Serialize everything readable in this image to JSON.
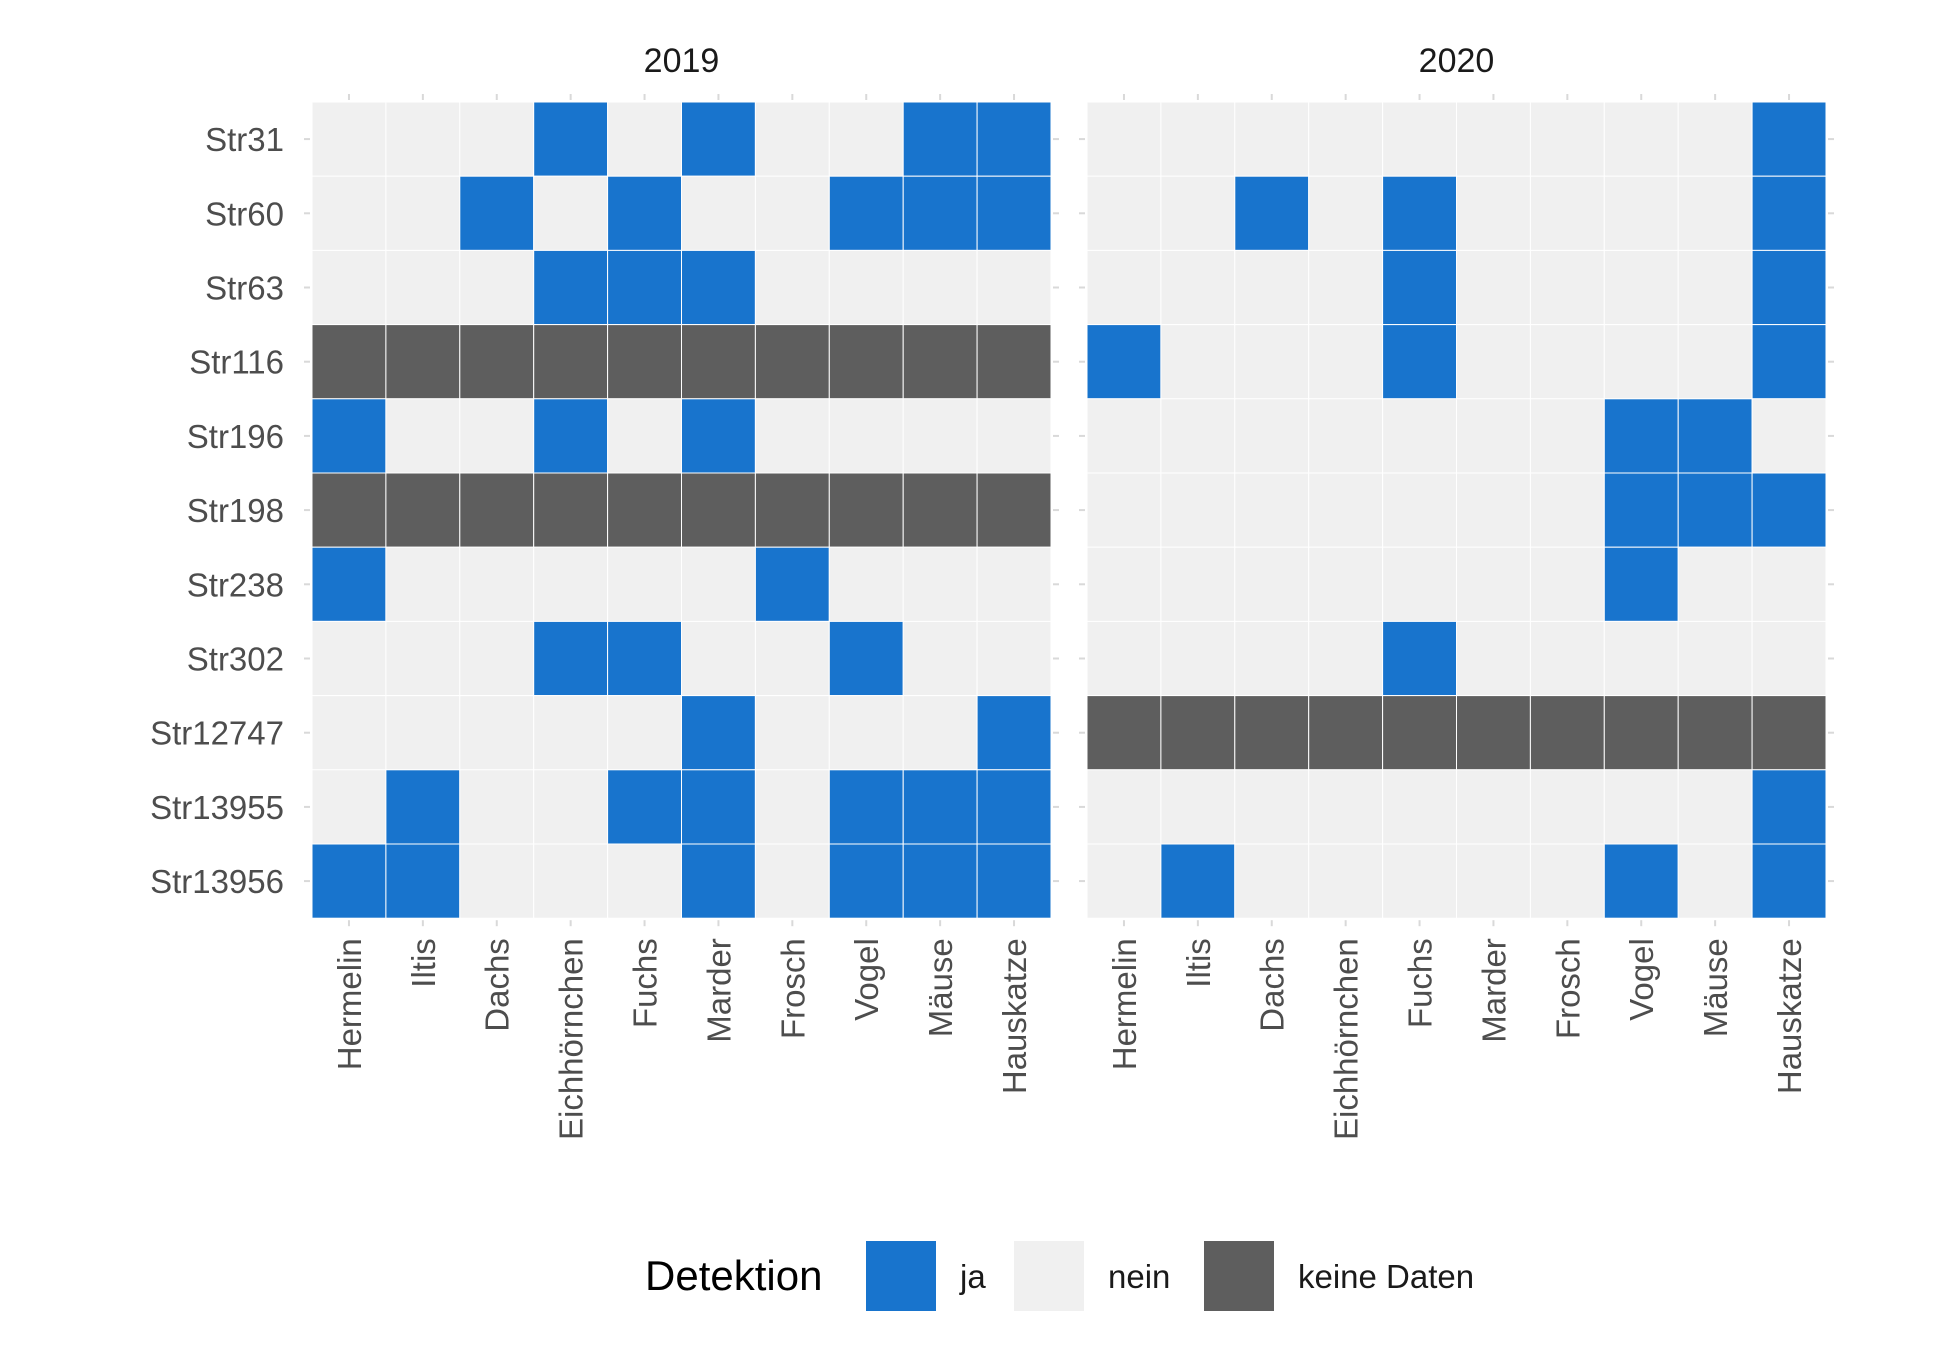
{
  "chart_data": {
    "type": "heatmap",
    "facets": [
      {
        "title": "2019",
        "matrix": [
          [
            1,
            1,
            1,
            0,
            1,
            0,
            1,
            1,
            0,
            0
          ],
          [
            1,
            1,
            0,
            1,
            0,
            1,
            1,
            0,
            0,
            0
          ],
          [
            1,
            1,
            1,
            0,
            0,
            0,
            1,
            1,
            1,
            1
          ],
          [
            2,
            2,
            2,
            2,
            2,
            2,
            2,
            2,
            2,
            2
          ],
          [
            0,
            1,
            1,
            0,
            1,
            0,
            1,
            1,
            1,
            1
          ],
          [
            2,
            2,
            2,
            2,
            2,
            2,
            2,
            2,
            2,
            2
          ],
          [
            0,
            1,
            1,
            1,
            1,
            1,
            0,
            1,
            1,
            1
          ],
          [
            1,
            1,
            1,
            0,
            0,
            1,
            1,
            0,
            1,
            1
          ],
          [
            1,
            1,
            1,
            1,
            1,
            0,
            1,
            1,
            1,
            0
          ],
          [
            1,
            0,
            1,
            1,
            0,
            0,
            1,
            0,
            0,
            0
          ],
          [
            0,
            0,
            1,
            1,
            1,
            0,
            1,
            0,
            0,
            0
          ]
        ]
      },
      {
        "title": "2020",
        "matrix": [
          [
            1,
            1,
            1,
            1,
            1,
            1,
            1,
            1,
            1,
            0
          ],
          [
            1,
            1,
            0,
            1,
            0,
            1,
            1,
            1,
            1,
            0
          ],
          [
            1,
            1,
            1,
            1,
            0,
            1,
            1,
            1,
            1,
            0
          ],
          [
            0,
            1,
            1,
            1,
            0,
            1,
            1,
            1,
            1,
            0
          ],
          [
            1,
            1,
            1,
            1,
            1,
            1,
            1,
            0,
            0,
            1
          ],
          [
            1,
            1,
            1,
            1,
            1,
            1,
            1,
            0,
            0,
            0
          ],
          [
            1,
            1,
            1,
            1,
            1,
            1,
            1,
            0,
            1,
            1
          ],
          [
            1,
            1,
            1,
            1,
            0,
            1,
            1,
            1,
            1,
            1
          ],
          [
            2,
            2,
            2,
            2,
            2,
            2,
            2,
            2,
            2,
            2
          ],
          [
            1,
            1,
            1,
            1,
            1,
            1,
            1,
            1,
            1,
            0
          ],
          [
            1,
            0,
            1,
            1,
            1,
            1,
            1,
            0,
            1,
            0
          ]
        ]
      }
    ],
    "rows": [
      "Str31",
      "Str60",
      "Str63",
      "Str116",
      "Str196",
      "Str198",
      "Str238",
      "Str302",
      "Str12747",
      "Str13955",
      "Str13956"
    ],
    "columns": [
      "Hermelin",
      "Iltis",
      "Dachs",
      "Eichhörnchen",
      "Fuchs",
      "Marder",
      "Frosch",
      "Vogel",
      "Mäuse",
      "Hauskatze"
    ],
    "value_codes": [
      "ja",
      "nein",
      "keine Daten"
    ],
    "legend": {
      "title": "Detektion",
      "position": "bottom",
      "items": [
        {
          "label": "ja",
          "color": "#1874CD"
        },
        {
          "label": "nein",
          "color": "#F0F0F0"
        },
        {
          "label": "keine Daten",
          "color": "#5E5E5E"
        }
      ]
    },
    "grid": true,
    "grid_color": "#FFFFFF"
  }
}
